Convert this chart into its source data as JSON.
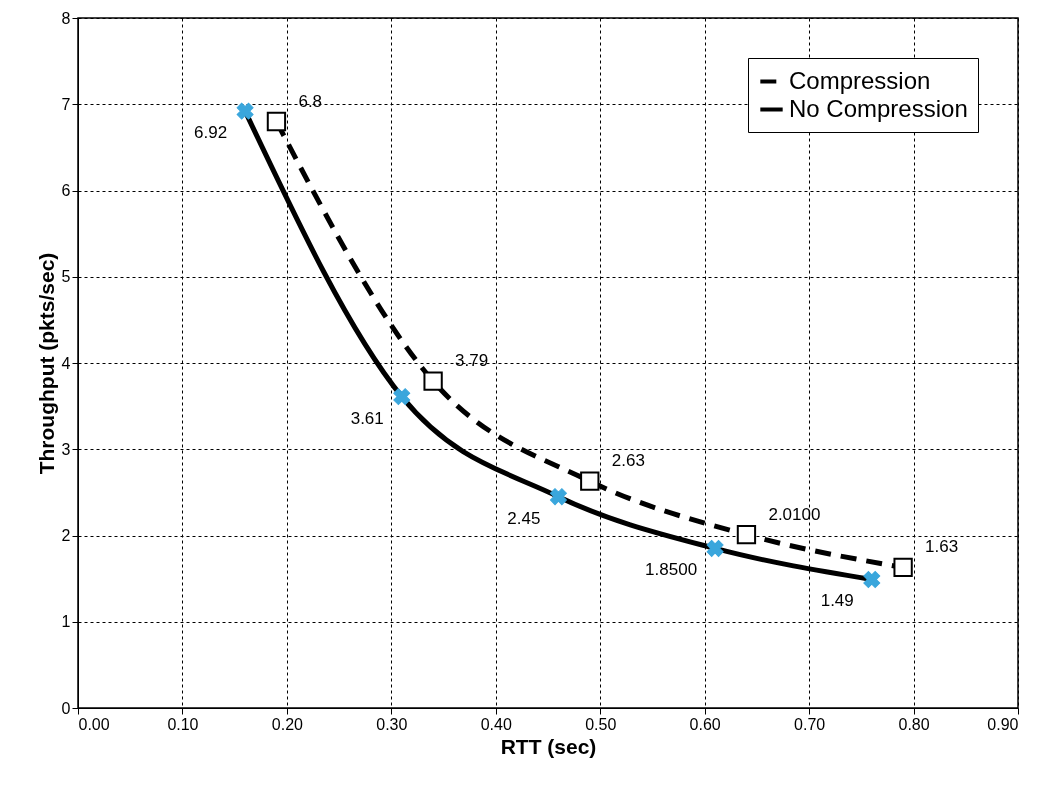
{
  "chart_data": {
    "type": "line",
    "xlabel": "RTT (sec)",
    "ylabel": "Throughput (pkts/sec)",
    "xlim": [
      0,
      0.9
    ],
    "xticks": [
      {
        "value": 0,
        "label": "0.00"
      },
      {
        "value": 0.1,
        "label": "0.10"
      },
      {
        "value": 0.2,
        "label": "0.20"
      },
      {
        "value": 0.3,
        "label": "0.30"
      },
      {
        "value": 0.4,
        "label": "0.40"
      },
      {
        "value": 0.5,
        "label": "0.50"
      },
      {
        "value": 0.6,
        "label": "0.60"
      },
      {
        "value": 0.7,
        "label": "0.70"
      },
      {
        "value": 0.8,
        "label": "0.80"
      },
      {
        "value": 0.9,
        "label": "0.90"
      }
    ],
    "ylim": [
      0,
      8
    ],
    "yticks": [
      0,
      1,
      2,
      3,
      4,
      5,
      6,
      7,
      8
    ],
    "grid": true,
    "legend": "top right",
    "series": [
      {
        "name": "Compression",
        "color": "#000000",
        "marker": "square",
        "line_style": "dashed",
        "x": [
          0.19,
          0.34,
          0.49,
          0.64,
          0.79
        ],
        "values": [
          6.8,
          3.79,
          2.63,
          2.01,
          1.63
        ],
        "value_labels": [
          "6.8",
          "3.79",
          "2.63",
          "2.0100",
          "1.63"
        ]
      },
      {
        "name": "No Compression",
        "color": "#000000",
        "marker": "cross",
        "line_style": "solid",
        "x": [
          0.16,
          0.31,
          0.46,
          0.61,
          0.76
        ],
        "values": [
          6.92,
          3.61,
          2.45,
          1.85,
          1.49
        ],
        "value_labels": [
          "6.92",
          "3.61",
          "2.45",
          "1.8500",
          "1.49"
        ]
      }
    ]
  }
}
